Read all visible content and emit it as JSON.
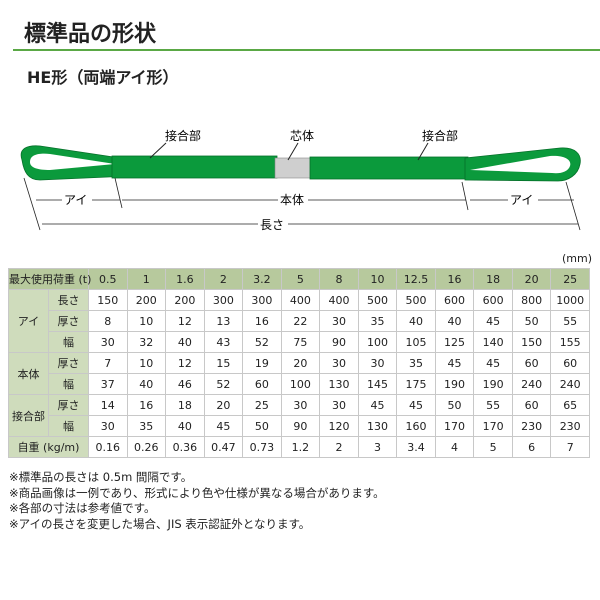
{
  "title": "標準品の形状",
  "subtitle": "HE形（両端アイ形）",
  "diagram": {
    "joint_left": "接合部",
    "core": "芯体",
    "joint_right": "接合部",
    "eye_left": "アイ",
    "body": "本体",
    "eye_right": "アイ",
    "length": "長さ",
    "colors": {
      "sling": "#0b9a3c",
      "core": "#cfcfcf"
    }
  },
  "unit": "(mm)",
  "table": {
    "header_label": "最大使用荷重 (t)",
    "loads": [
      "0.5",
      "1",
      "1.6",
      "2",
      "3.2",
      "5",
      "8",
      "10",
      "12.5",
      "16",
      "18",
      "20",
      "25"
    ],
    "groups": [
      {
        "label": "アイ",
        "rows": [
          {
            "label": "長さ",
            "values": [
              "150",
              "200",
              "200",
              "300",
              "300",
              "400",
              "400",
              "500",
              "500",
              "600",
              "600",
              "800",
              "1000"
            ]
          },
          {
            "label": "厚さ",
            "values": [
              "8",
              "10",
              "12",
              "13",
              "16",
              "22",
              "30",
              "35",
              "40",
              "40",
              "45",
              "50",
              "55"
            ]
          },
          {
            "label": "幅",
            "values": [
              "30",
              "32",
              "40",
              "43",
              "52",
              "75",
              "90",
              "100",
              "105",
              "125",
              "140",
              "150",
              "155"
            ]
          }
        ]
      },
      {
        "label": "本体",
        "rows": [
          {
            "label": "厚さ",
            "values": [
              "7",
              "10",
              "12",
              "15",
              "19",
              "20",
              "30",
              "30",
              "35",
              "45",
              "45",
              "60",
              "60"
            ]
          },
          {
            "label": "幅",
            "values": [
              "37",
              "40",
              "46",
              "52",
              "60",
              "100",
              "130",
              "145",
              "175",
              "190",
              "190",
              "240",
              "240"
            ]
          }
        ]
      },
      {
        "label": "接合部",
        "rows": [
          {
            "label": "厚さ",
            "values": [
              "14",
              "16",
              "18",
              "20",
              "25",
              "30",
              "30",
              "45",
              "45",
              "50",
              "55",
              "60",
              "65"
            ]
          },
          {
            "label": "幅",
            "values": [
              "30",
              "35",
              "40",
              "45",
              "50",
              "90",
              "120",
              "130",
              "160",
              "170",
              "170",
              "230",
              "230"
            ]
          }
        ]
      }
    ],
    "weight_label": "自重 (kg/m)",
    "weights": [
      "0.16",
      "0.26",
      "0.36",
      "0.47",
      "0.73",
      "1.2",
      "2",
      "3",
      "3.4",
      "4",
      "5",
      "6",
      "7"
    ]
  },
  "notes": [
    "※標準品の長さは 0.5m 間隔です。",
    "※商品画像は一例であり、形式により色や仕様が異なる場合があります。",
    "※各部の寸法は参考値です。",
    "※アイの長さを変更した場合、JIS 表示認証外となります。"
  ]
}
